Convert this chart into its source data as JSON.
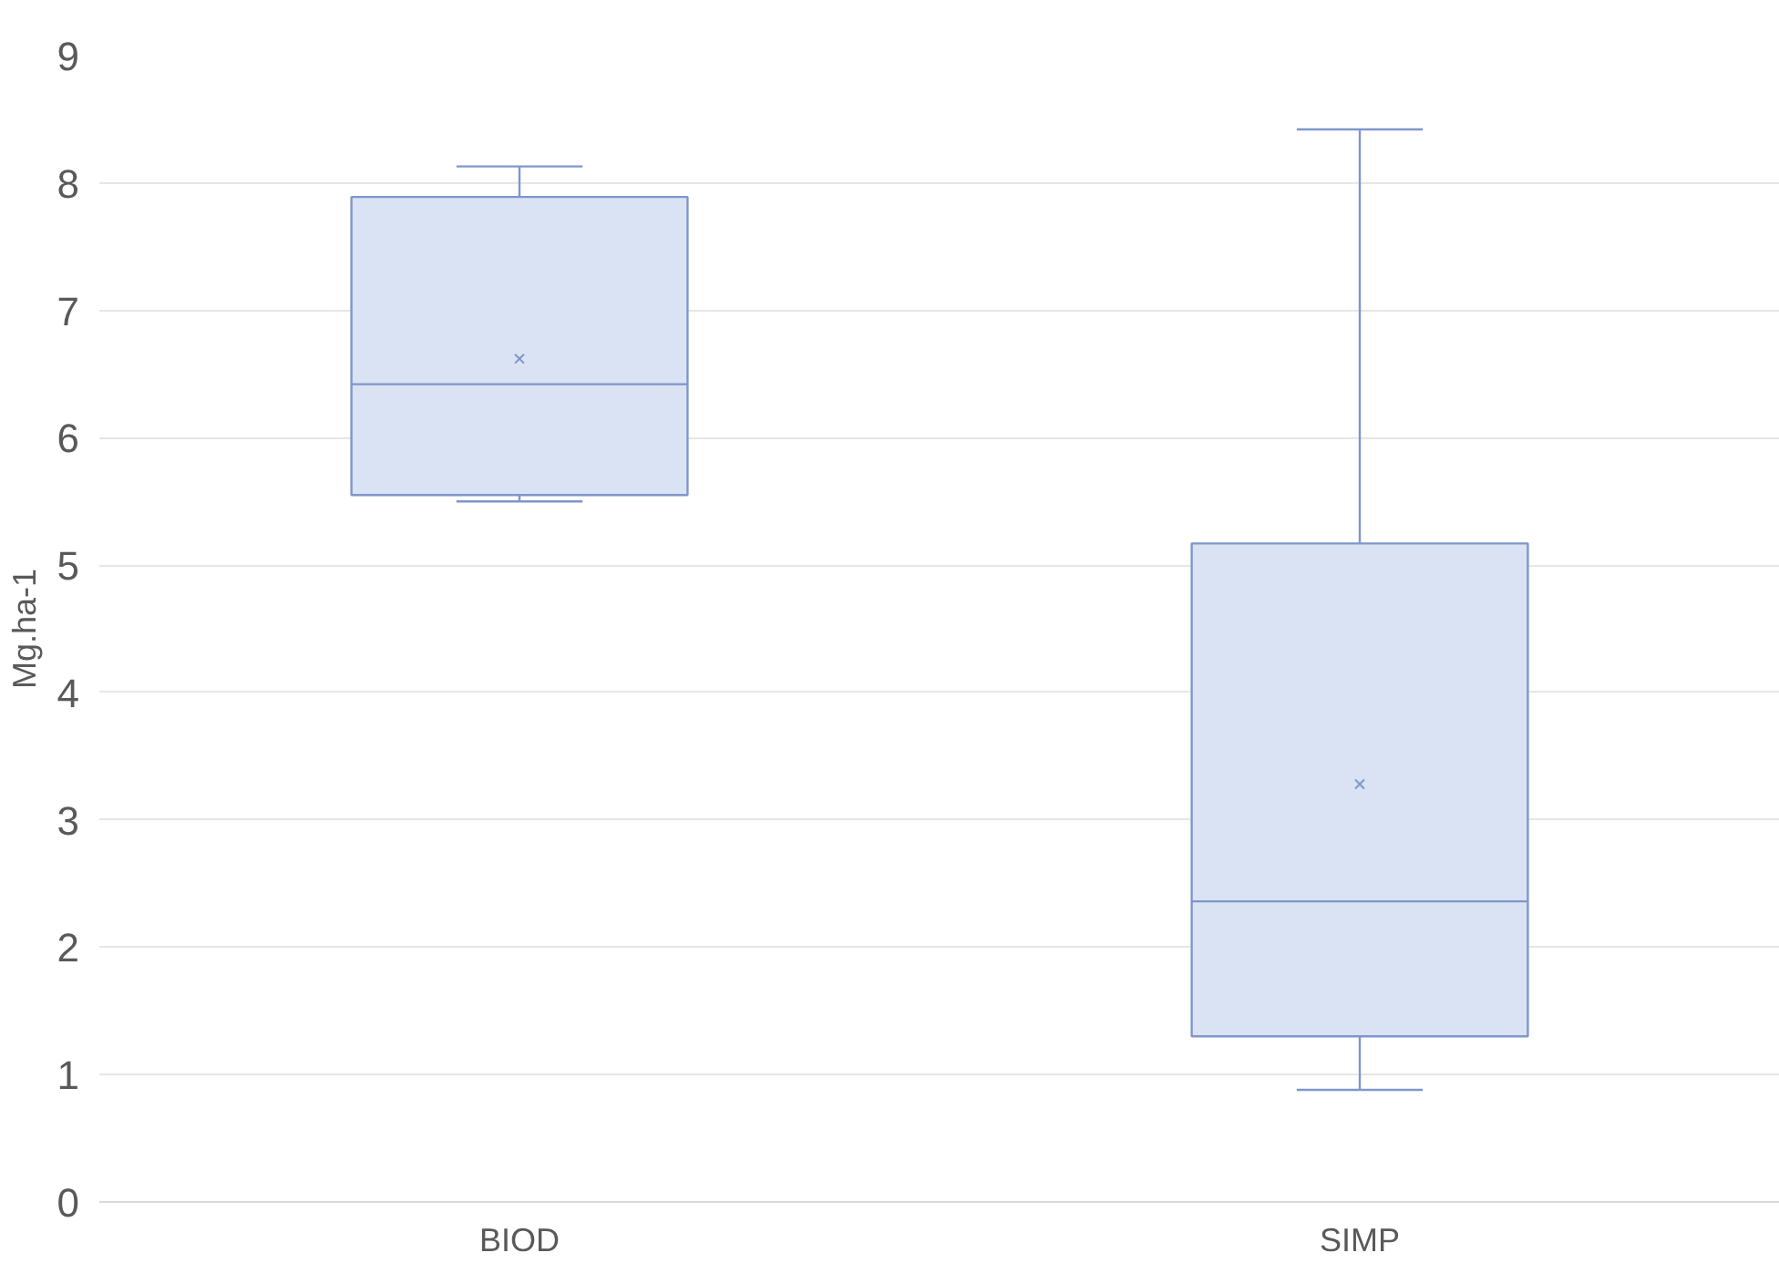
{
  "chart_data": {
    "type": "box",
    "ylabel": "Mg.ha-1",
    "categories": [
      "BIOD",
      "SIMP"
    ],
    "boxes": [
      {
        "low": 5.5,
        "q1": 5.55,
        "median": 6.42,
        "q3": 7.89,
        "high": 8.13,
        "mean": 6.62
      },
      {
        "low": 0.88,
        "q1": 1.3,
        "median": 2.36,
        "q3": 5.17,
        "high": 8.42,
        "mean": 3.28
      }
    ],
    "color": "#dae3f3",
    "ylim": [
      0,
      9
    ],
    "yticks": [
      0,
      1,
      2,
      3,
      4,
      5,
      6,
      7,
      8,
      9
    ],
    "grid": "y"
  }
}
